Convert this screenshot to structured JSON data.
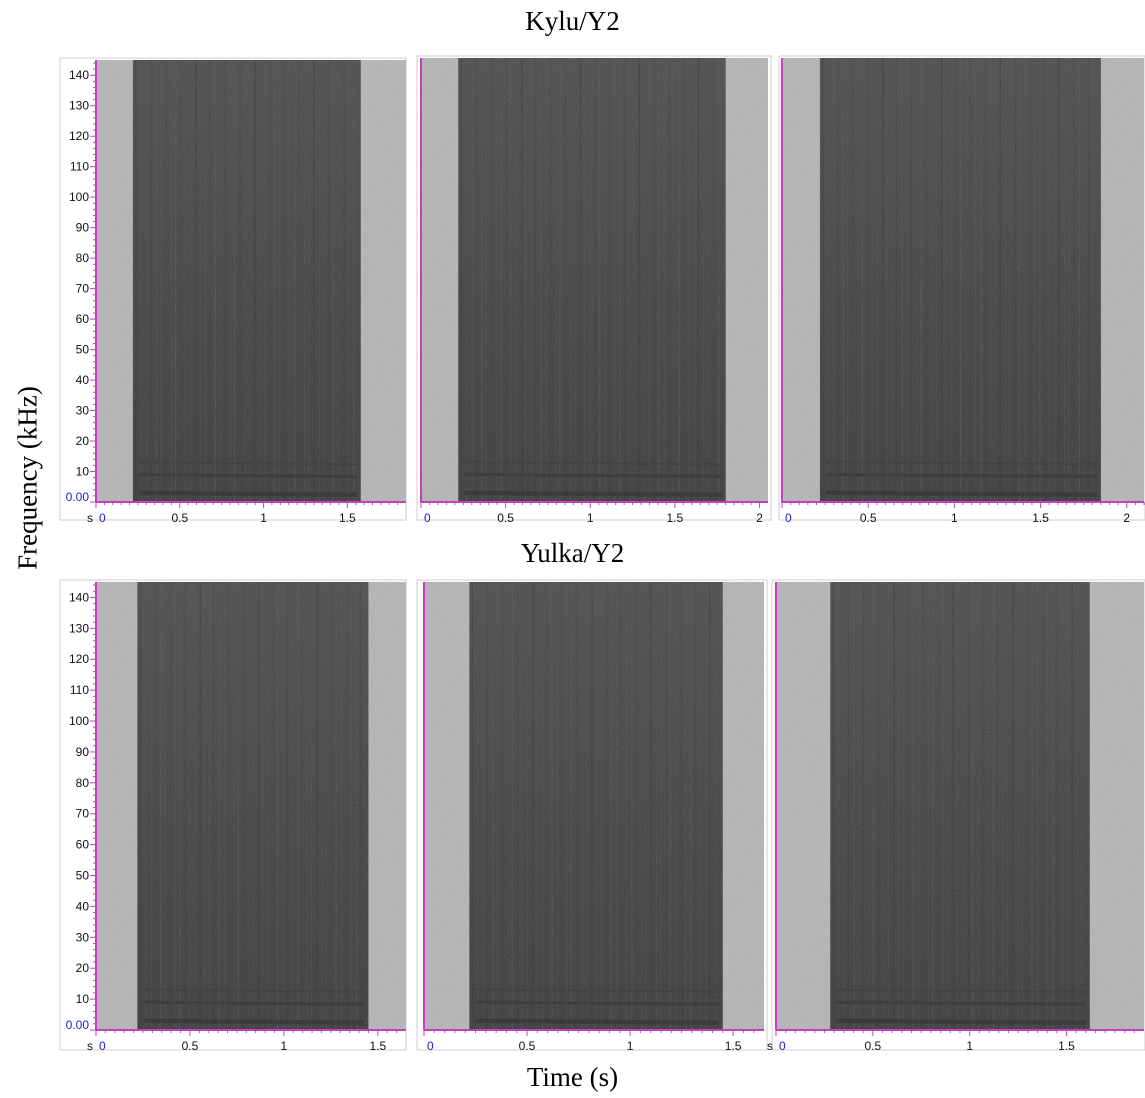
{
  "figure": {
    "ylabel": "Frequency (kHz)",
    "xlabel": "Time (s)",
    "colors": {
      "axis": "#c040c0",
      "zero_label": "#2020d0",
      "noise_light": "#b4b4b4",
      "energy_dark": "#2c2c2c"
    }
  },
  "chart_data": [
    {
      "type": "heatmap",
      "title": "Kylu/Y2",
      "group": "Kylu/Y2",
      "row": 0,
      "col": 0,
      "xlim": [
        0,
        1.85
      ],
      "ylim": [
        0,
        145
      ],
      "x_ticks": [
        0,
        0.5,
        1,
        1.5
      ],
      "x_tick_labels": [
        "0",
        "0.5",
        "1",
        "1.5"
      ],
      "y_ticks": [
        10,
        20,
        30,
        40,
        50,
        60,
        70,
        80,
        90,
        100,
        110,
        120,
        130,
        140
      ],
      "y_tick_labels": [
        "10",
        "20",
        "30",
        "40",
        "50",
        "60",
        "70",
        "80",
        "90",
        "100",
        "110",
        "120",
        "130",
        "140"
      ],
      "zero_label": "0.00",
      "x_unit_marker": "s",
      "call_start_s": 0.22,
      "call_end_s": 1.58
    },
    {
      "type": "heatmap",
      "group": "Kylu/Y2",
      "row": 0,
      "col": 1,
      "xlim": [
        0,
        2.05
      ],
      "ylim": [
        0,
        145
      ],
      "x_ticks": [
        0,
        0.5,
        1,
        1.5,
        2
      ],
      "x_tick_labels": [
        "0",
        "0.5",
        "1",
        "1.5",
        "2"
      ],
      "call_start_s": 0.22,
      "call_end_s": 1.8
    },
    {
      "type": "heatmap",
      "group": "Kylu/Y2",
      "row": 0,
      "col": 2,
      "xlim": [
        0,
        2.1
      ],
      "ylim": [
        0,
        145
      ],
      "x_ticks": [
        0,
        0.5,
        1,
        1.5,
        2
      ],
      "x_tick_labels": [
        "0",
        "0.5",
        "1",
        "1.5",
        "2"
      ],
      "call_start_s": 0.22,
      "call_end_s": 1.85
    },
    {
      "type": "heatmap",
      "title": "Yulka/Y2",
      "group": "Yulka/Y2",
      "row": 1,
      "col": 0,
      "xlim": [
        0,
        1.65
      ],
      "ylim": [
        0,
        145
      ],
      "x_ticks": [
        0,
        0.5,
        1,
        1.5
      ],
      "x_tick_labels": [
        "0",
        "0.5",
        "1",
        "1.5"
      ],
      "y_ticks": [
        10,
        20,
        30,
        40,
        50,
        60,
        70,
        80,
        90,
        100,
        110,
        120,
        130,
        140
      ],
      "y_tick_labels": [
        "10",
        "20",
        "30",
        "40",
        "50",
        "60",
        "70",
        "80",
        "90",
        "100",
        "110",
        "120",
        "130",
        "140"
      ],
      "zero_label": "0.00",
      "x_unit_marker": "s",
      "call_start_s": 0.22,
      "call_end_s": 1.45
    },
    {
      "type": "heatmap",
      "group": "Yulka/Y2",
      "row": 1,
      "col": 1,
      "xlim": [
        0,
        1.65
      ],
      "ylim": [
        0,
        145
      ],
      "x_ticks": [
        0,
        0.5,
        1,
        1.5
      ],
      "x_tick_labels": [
        "0",
        "0.5",
        "1",
        "1.5"
      ],
      "call_start_s": 0.22,
      "call_end_s": 1.45
    },
    {
      "type": "heatmap",
      "group": "Yulka/Y2",
      "row": 1,
      "col": 2,
      "xlim": [
        0,
        1.9
      ],
      "ylim": [
        0,
        145
      ],
      "x_ticks": [
        0,
        0.5,
        1,
        1.5
      ],
      "x_tick_labels": [
        "0",
        "0.5",
        "1",
        "1.5"
      ],
      "x_unit_marker": "s",
      "call_start_s": 0.28,
      "call_end_s": 1.62
    }
  ]
}
